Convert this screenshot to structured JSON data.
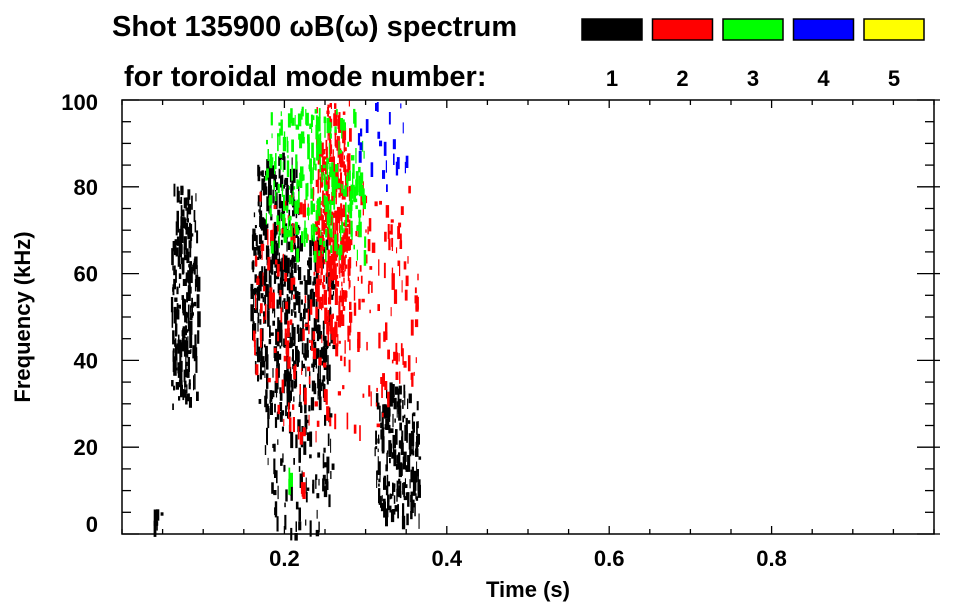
{
  "chart_data": {
    "type": "heatmap",
    "title_line1": "Shot 135900 ωB(ω) spectrum",
    "title_line2": "for toroidal mode number:",
    "xlabel": "Time (s)",
    "ylabel": "Frequency (kHz)",
    "xlim": [
      0,
      1.0
    ],
    "ylim": [
      0,
      100
    ],
    "xticks": [
      0.2,
      0.4,
      0.6,
      0.8
    ],
    "xtick_labels": [
      "0.2",
      "0.4",
      "0.6",
      "0.8"
    ],
    "yticks": [
      0,
      20,
      40,
      60,
      80,
      100
    ],
    "ytick_labels": [
      "0",
      "20",
      "40",
      "60",
      "80",
      "100"
    ],
    "x_minor_step": 0.05,
    "y_minor_step": 5,
    "legend": [
      {
        "label": "1",
        "color": "#000000"
      },
      {
        "label": "2",
        "color": "#ff0000"
      },
      {
        "label": "3",
        "color": "#00ff00"
      },
      {
        "label": "4",
        "color": "#0000ff"
      },
      {
        "label": "5",
        "color": "#ffff00"
      }
    ],
    "legend_position": "top-right",
    "regions": [
      {
        "mode": 1,
        "t": [
          0.06,
          0.093
        ],
        "f": [
          30,
          81
        ],
        "density": 0.7
      },
      {
        "mode": 1,
        "t": [
          0.158,
          0.22
        ],
        "f": [
          28,
          88
        ],
        "density": 0.6
      },
      {
        "mode": 1,
        "t": [
          0.175,
          0.26
        ],
        "f": [
          0,
          40
        ],
        "density": 0.2
      },
      {
        "mode": 1,
        "t": [
          0.22,
          0.26
        ],
        "f": [
          31,
          70
        ],
        "density": 0.5
      },
      {
        "mode": 1,
        "t": [
          0.31,
          0.367
        ],
        "f": [
          4,
          35
        ],
        "density": 0.65
      },
      {
        "mode": 1,
        "t": [
          0.035,
          0.05
        ],
        "f": [
          2,
          7
        ],
        "density": 0.4
      },
      {
        "mode": 2,
        "t": [
          0.237,
          0.28
        ],
        "f": [
          47,
          100
        ],
        "density": 0.75
      },
      {
        "mode": 2,
        "t": [
          0.16,
          0.367
        ],
        "f": [
          22,
          82
        ],
        "density": 0.12
      },
      {
        "mode": 2,
        "t": [
          0.22,
          0.227
        ],
        "f": [
          10,
          15
        ],
        "density": 0.8
      },
      {
        "mode": 3,
        "t": [
          0.176,
          0.3
        ],
        "f": [
          65,
          100
        ],
        "density": 0.35
      },
      {
        "mode": 3,
        "t": [
          0.2,
          0.21
        ],
        "f": [
          11,
          16
        ],
        "density": 0.4
      },
      {
        "mode": 4,
        "t": [
          0.29,
          0.355
        ],
        "f": [
          80,
          100
        ],
        "density": 0.12
      }
    ]
  }
}
